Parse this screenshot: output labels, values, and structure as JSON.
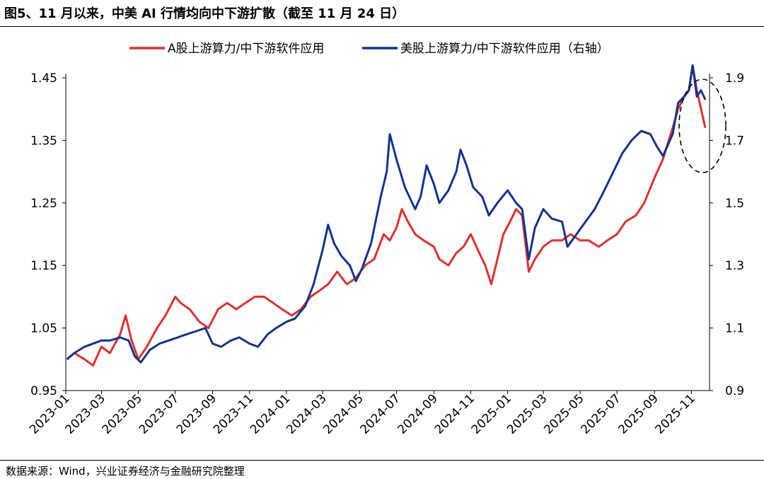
{
  "title": "图5、11 月以来，中美 AI 行情均向中下游扩散（截至 11 月 24 日）",
  "source": "数据来源：Wind，兴业证券经济与金融研究院整理",
  "chart_data": {
    "type": "line",
    "legend_position": "top",
    "grid": false,
    "x_ticks": [
      "2023-01",
      "2023-03",
      "2023-05",
      "2023-07",
      "2023-09",
      "2023-11",
      "2024-01",
      "2024-03",
      "2024-05",
      "2024-07",
      "2024-09",
      "2024-11",
      "2025-01",
      "2025-03",
      "2025-05",
      "2025-07",
      "2025-09",
      "2025-11"
    ],
    "y_left": {
      "ylim": [
        0.95,
        1.45
      ],
      "ticks": [
        0.95,
        1.05,
        1.15,
        1.25,
        1.35,
        1.45
      ]
    },
    "y_right": {
      "ylim": [
        0.9,
        1.9
      ],
      "ticks": [
        0.9,
        1.1,
        1.3,
        1.5,
        1.7,
        1.9
      ]
    },
    "series": [
      {
        "name": "A股上游算力/中下游软件应用",
        "axis": "left",
        "color": "#E03030",
        "points": [
          [
            "2023-01-03",
            1.0
          ],
          [
            "2023-01-15",
            1.01
          ],
          [
            "2023-02-01",
            1.0
          ],
          [
            "2023-02-15",
            0.99
          ],
          [
            "2023-03-01",
            1.02
          ],
          [
            "2023-03-15",
            1.01
          ],
          [
            "2023-04-01",
            1.04
          ],
          [
            "2023-04-10",
            1.07
          ],
          [
            "2023-04-20",
            1.03
          ],
          [
            "2023-05-01",
            1.0
          ],
          [
            "2023-05-15",
            1.02
          ],
          [
            "2023-06-01",
            1.05
          ],
          [
            "2023-06-15",
            1.07
          ],
          [
            "2023-07-01",
            1.1
          ],
          [
            "2023-07-10",
            1.09
          ],
          [
            "2023-07-25",
            1.08
          ],
          [
            "2023-08-10",
            1.06
          ],
          [
            "2023-08-25",
            1.05
          ],
          [
            "2023-09-10",
            1.08
          ],
          [
            "2023-09-25",
            1.09
          ],
          [
            "2023-10-10",
            1.08
          ],
          [
            "2023-10-25",
            1.09
          ],
          [
            "2023-11-10",
            1.1
          ],
          [
            "2023-11-25",
            1.1
          ],
          [
            "2023-12-10",
            1.09
          ],
          [
            "2023-12-25",
            1.08
          ],
          [
            "2024-01-10",
            1.07
          ],
          [
            "2024-01-25",
            1.08
          ],
          [
            "2024-02-10",
            1.1
          ],
          [
            "2024-02-25",
            1.11
          ],
          [
            "2024-03-10",
            1.12
          ],
          [
            "2024-03-25",
            1.14
          ],
          [
            "2024-04-10",
            1.12
          ],
          [
            "2024-04-25",
            1.13
          ],
          [
            "2024-05-10",
            1.15
          ],
          [
            "2024-05-25",
            1.16
          ],
          [
            "2024-06-10",
            1.2
          ],
          [
            "2024-06-20",
            1.19
          ],
          [
            "2024-07-01",
            1.21
          ],
          [
            "2024-07-10",
            1.24
          ],
          [
            "2024-07-20",
            1.22
          ],
          [
            "2024-08-01",
            1.2
          ],
          [
            "2024-08-15",
            1.19
          ],
          [
            "2024-09-01",
            1.18
          ],
          [
            "2024-09-10",
            1.16
          ],
          [
            "2024-09-25",
            1.15
          ],
          [
            "2024-10-08",
            1.17
          ],
          [
            "2024-10-20",
            1.18
          ],
          [
            "2024-11-01",
            1.2
          ],
          [
            "2024-11-15",
            1.17
          ],
          [
            "2024-11-25",
            1.15
          ],
          [
            "2024-12-05",
            1.12
          ],
          [
            "2024-12-15",
            1.16
          ],
          [
            "2024-12-25",
            1.2
          ],
          [
            "2025-01-05",
            1.22
          ],
          [
            "2025-01-15",
            1.24
          ],
          [
            "2025-01-25",
            1.23
          ],
          [
            "2025-02-05",
            1.14
          ],
          [
            "2025-02-15",
            1.16
          ],
          [
            "2025-03-01",
            1.18
          ],
          [
            "2025-03-15",
            1.19
          ],
          [
            "2025-04-01",
            1.19
          ],
          [
            "2025-04-15",
            1.2
          ],
          [
            "2025-05-01",
            1.19
          ],
          [
            "2025-05-15",
            1.19
          ],
          [
            "2025-06-01",
            1.18
          ],
          [
            "2025-06-15",
            1.19
          ],
          [
            "2025-07-01",
            1.2
          ],
          [
            "2025-07-15",
            1.22
          ],
          [
            "2025-08-01",
            1.23
          ],
          [
            "2025-08-15",
            1.25
          ],
          [
            "2025-09-01",
            1.29
          ],
          [
            "2025-09-15",
            1.32
          ],
          [
            "2025-10-01",
            1.37
          ],
          [
            "2025-10-10",
            1.4
          ],
          [
            "2025-10-20",
            1.42
          ],
          [
            "2025-10-28",
            1.43
          ],
          [
            "2025-11-03",
            1.47
          ],
          [
            "2025-11-10",
            1.43
          ],
          [
            "2025-11-17",
            1.4
          ],
          [
            "2025-11-24",
            1.37
          ]
        ]
      },
      {
        "name": "美股上游算力/中下游软件应用（右轴）",
        "axis": "right",
        "color": "#14348C",
        "points": [
          [
            "2023-01-03",
            1.0
          ],
          [
            "2023-01-15",
            1.02
          ],
          [
            "2023-02-01",
            1.04
          ],
          [
            "2023-02-15",
            1.05
          ],
          [
            "2023-03-01",
            1.06
          ],
          [
            "2023-03-15",
            1.06
          ],
          [
            "2023-04-01",
            1.07
          ],
          [
            "2023-04-15",
            1.06
          ],
          [
            "2023-04-25",
            1.01
          ],
          [
            "2023-05-05",
            0.99
          ],
          [
            "2023-05-20",
            1.03
          ],
          [
            "2023-06-05",
            1.05
          ],
          [
            "2023-06-20",
            1.06
          ],
          [
            "2023-07-05",
            1.07
          ],
          [
            "2023-07-20",
            1.08
          ],
          [
            "2023-08-05",
            1.09
          ],
          [
            "2023-08-20",
            1.1
          ],
          [
            "2023-09-01",
            1.05
          ],
          [
            "2023-09-15",
            1.04
          ],
          [
            "2023-10-01",
            1.06
          ],
          [
            "2023-10-15",
            1.07
          ],
          [
            "2023-11-01",
            1.05
          ],
          [
            "2023-11-15",
            1.04
          ],
          [
            "2023-12-01",
            1.08
          ],
          [
            "2023-12-15",
            1.1
          ],
          [
            "2024-01-01",
            1.12
          ],
          [
            "2024-01-15",
            1.13
          ],
          [
            "2024-02-01",
            1.17
          ],
          [
            "2024-02-15",
            1.24
          ],
          [
            "2024-03-01",
            1.35
          ],
          [
            "2024-03-10",
            1.43
          ],
          [
            "2024-03-20",
            1.37
          ],
          [
            "2024-04-01",
            1.33
          ],
          [
            "2024-04-15",
            1.3
          ],
          [
            "2024-04-25",
            1.25
          ],
          [
            "2024-05-05",
            1.29
          ],
          [
            "2024-05-20",
            1.37
          ],
          [
            "2024-06-05",
            1.52
          ],
          [
            "2024-06-15",
            1.6
          ],
          [
            "2024-06-20",
            1.72
          ],
          [
            "2024-07-01",
            1.64
          ],
          [
            "2024-07-15",
            1.55
          ],
          [
            "2024-08-01",
            1.48
          ],
          [
            "2024-08-10",
            1.52
          ],
          [
            "2024-08-20",
            1.62
          ],
          [
            "2024-09-01",
            1.56
          ],
          [
            "2024-09-10",
            1.5
          ],
          [
            "2024-09-25",
            1.54
          ],
          [
            "2024-10-08",
            1.6
          ],
          [
            "2024-10-15",
            1.67
          ],
          [
            "2024-10-25",
            1.62
          ],
          [
            "2024-11-05",
            1.55
          ],
          [
            "2024-11-20",
            1.52
          ],
          [
            "2024-12-01",
            1.46
          ],
          [
            "2024-12-15",
            1.5
          ],
          [
            "2025-01-01",
            1.54
          ],
          [
            "2025-01-15",
            1.5
          ],
          [
            "2025-01-25",
            1.48
          ],
          [
            "2025-02-05",
            1.32
          ],
          [
            "2025-02-15",
            1.42
          ],
          [
            "2025-03-01",
            1.48
          ],
          [
            "2025-03-15",
            1.45
          ],
          [
            "2025-04-01",
            1.44
          ],
          [
            "2025-04-10",
            1.36
          ],
          [
            "2025-04-25",
            1.4
          ],
          [
            "2025-05-10",
            1.44
          ],
          [
            "2025-05-25",
            1.48
          ],
          [
            "2025-06-10",
            1.54
          ],
          [
            "2025-06-25",
            1.6
          ],
          [
            "2025-07-10",
            1.66
          ],
          [
            "2025-07-25",
            1.7
          ],
          [
            "2025-08-10",
            1.73
          ],
          [
            "2025-08-25",
            1.72
          ],
          [
            "2025-09-05",
            1.68
          ],
          [
            "2025-09-15",
            1.65
          ],
          [
            "2025-10-01",
            1.72
          ],
          [
            "2025-10-10",
            1.82
          ],
          [
            "2025-10-20",
            1.84
          ],
          [
            "2025-10-28",
            1.86
          ],
          [
            "2025-11-03",
            1.94
          ],
          [
            "2025-11-10",
            1.84
          ],
          [
            "2025-11-17",
            1.86
          ],
          [
            "2025-11-24",
            1.83
          ]
        ]
      }
    ]
  }
}
